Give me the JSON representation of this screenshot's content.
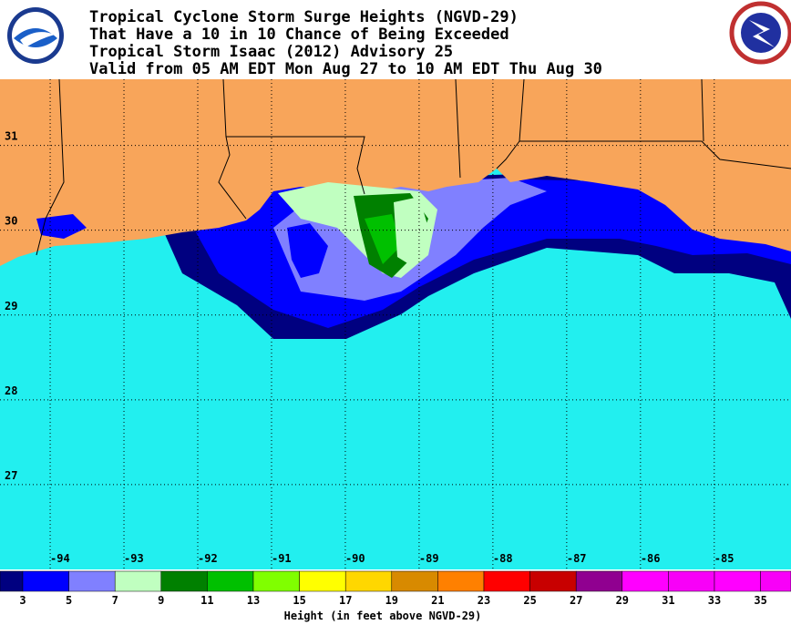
{
  "header": {
    "title_lines": [
      "Tropical Cyclone Storm Surge Heights (NGVD-29)",
      "That Have a 10 in 10 Chance of Being Exceeded",
      "Tropical Storm Isaac (2012) Advisory 25",
      "Valid from 05 AM EDT Mon Aug 27 to 10 AM EDT Thu Aug 30"
    ]
  },
  "map": {
    "lon_range": [
      -94.68,
      -83.96
    ],
    "lat_range": [
      31.78,
      26.0
    ],
    "lon_ticks": [
      -94,
      -93,
      -92,
      -91,
      -90,
      -89,
      -88,
      -87,
      -86,
      -85
    ],
    "lat_ticks": [
      31,
      30,
      29,
      28,
      27
    ]
  },
  "legend": {
    "colors": [
      "#000080",
      "#0000ff",
      "#8080ff",
      "#c0ffc0",
      "#008000",
      "#00c000",
      "#80ff00",
      "#ffff00",
      "#ffd700",
      "#d88a00",
      "#ff8000",
      "#ff0000",
      "#c80000",
      "#900090",
      "#ff00ff",
      "#f800f8",
      "#ff00ff",
      "#f800f8"
    ],
    "labels": [
      3,
      5,
      7,
      9,
      11,
      13,
      15,
      17,
      19,
      21,
      23,
      25,
      27,
      29,
      31,
      33,
      35
    ],
    "axis_label": "Height (in feet above NGVD-29)"
  }
}
